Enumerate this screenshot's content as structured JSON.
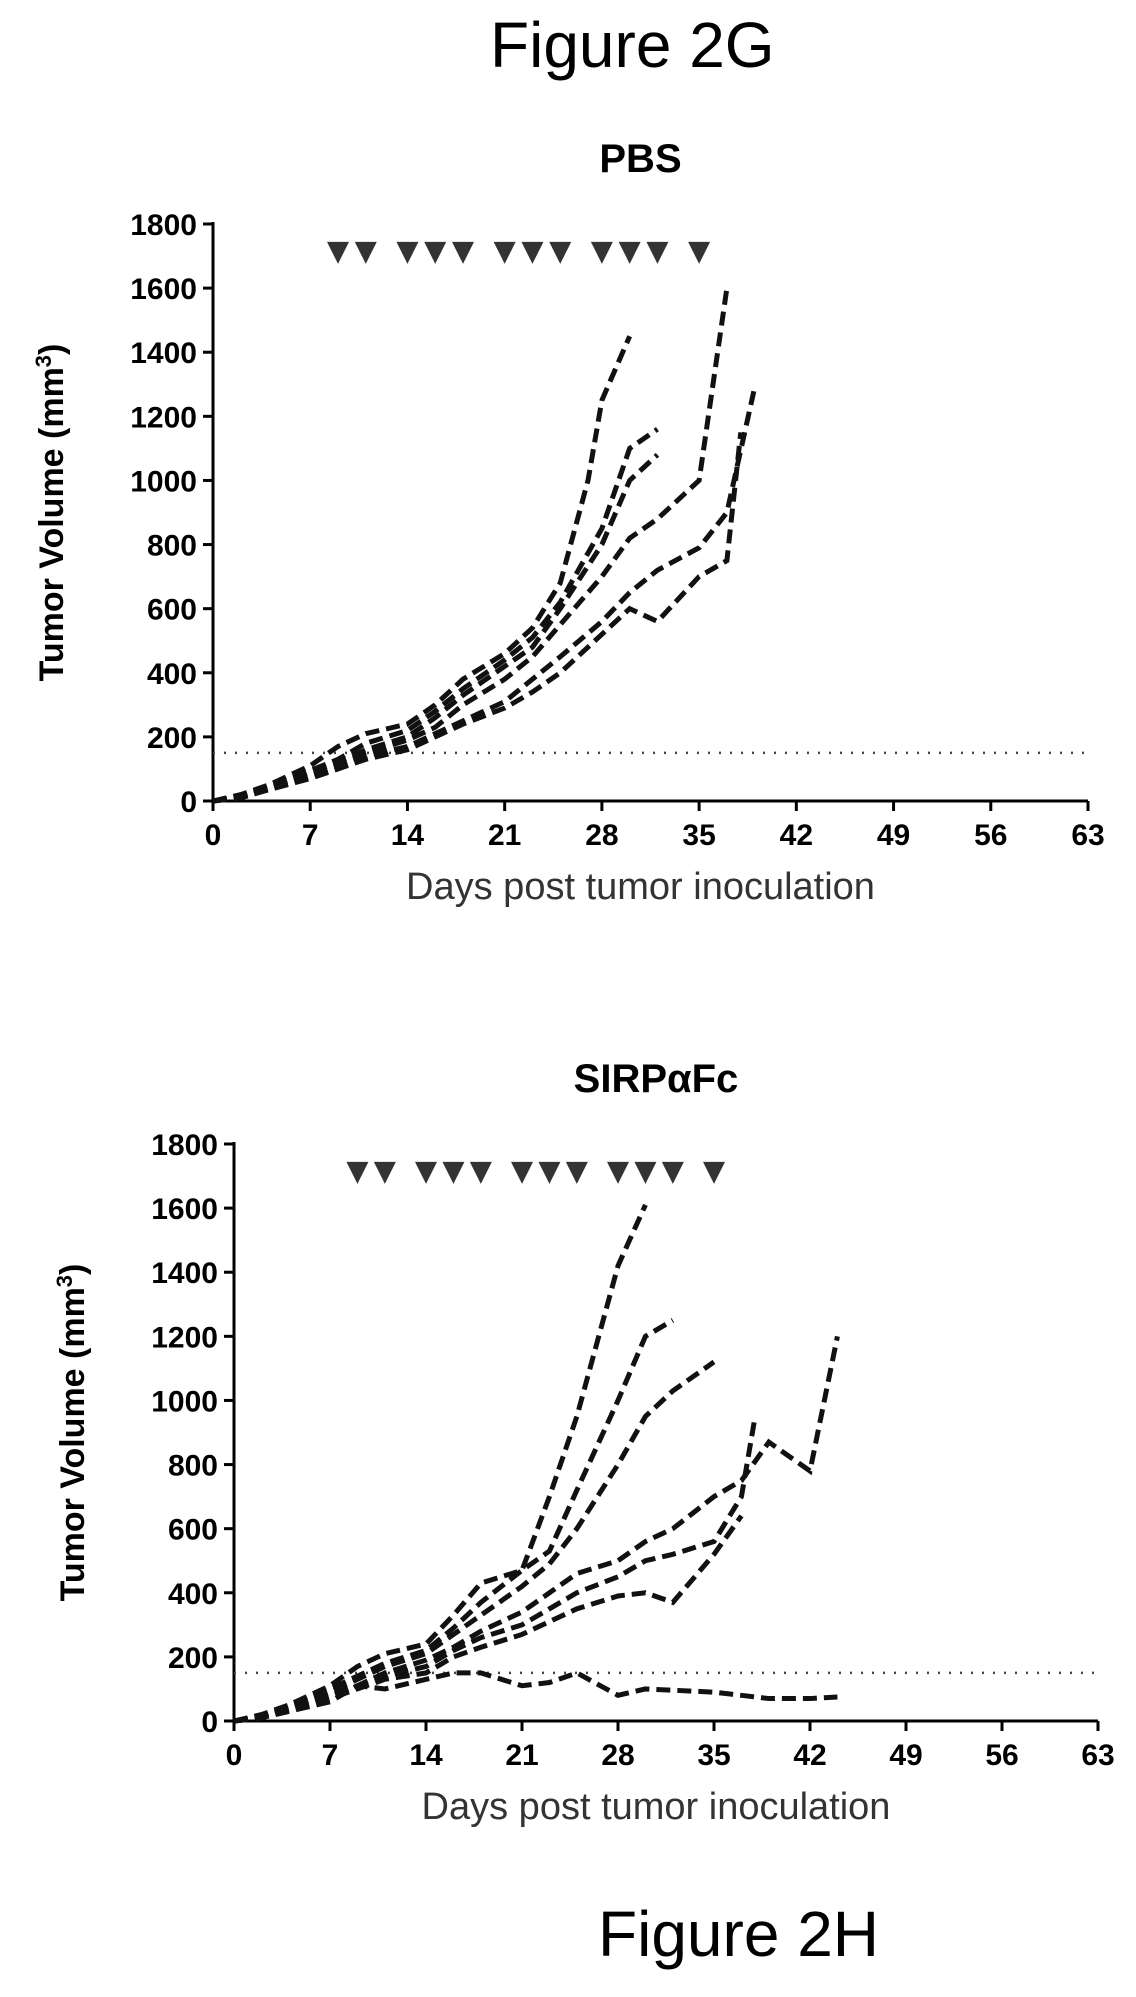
{
  "figure_labels": {
    "top": "Figure 2G",
    "bottom": "Figure 2H"
  },
  "chart_data": [
    {
      "type": "line",
      "title": "PBS",
      "xlabel": "Days post tumor inoculation",
      "ylabel": "Tumor Volume (mm",
      "ylabel_sup": "3",
      "ylabel_end": ")",
      "xlim": [
        0,
        63
      ],
      "ylim": [
        0,
        1800
      ],
      "x_ticks": [
        0,
        7,
        14,
        21,
        28,
        35,
        42,
        49,
        56,
        63
      ],
      "y_ticks": [
        0,
        200,
        400,
        600,
        800,
        1000,
        1200,
        1400,
        1600,
        1800
      ],
      "threshold": 150,
      "dosing_days": [
        9,
        11,
        14,
        16,
        18,
        21,
        23,
        25,
        28,
        30,
        32,
        35
      ],
      "dosing_level": 1710,
      "series": [
        {
          "x": [
            0,
            2,
            4,
            7,
            9,
            11,
            14,
            16,
            18,
            21,
            23,
            25,
            27,
            28,
            30
          ],
          "values": [
            0,
            20,
            50,
            110,
            170,
            210,
            240,
            300,
            380,
            460,
            540,
            680,
            1000,
            1250,
            1450
          ]
        },
        {
          "x": [
            0,
            2,
            4,
            7,
            9,
            11,
            14,
            16,
            18,
            21,
            23,
            25,
            28,
            30,
            32
          ],
          "values": [
            0,
            15,
            45,
            95,
            130,
            180,
            220,
            280,
            350,
            440,
            510,
            620,
            850,
            1100,
            1160
          ]
        },
        {
          "x": [
            0,
            2,
            4,
            7,
            9,
            11,
            14,
            16,
            18,
            21,
            23,
            25,
            28,
            30,
            32
          ],
          "values": [
            0,
            15,
            40,
            90,
            120,
            160,
            200,
            260,
            330,
            420,
            480,
            600,
            800,
            1000,
            1080
          ]
        },
        {
          "x": [
            0,
            2,
            4,
            7,
            9,
            11,
            14,
            16,
            18,
            21,
            23,
            25,
            28,
            30,
            32,
            35,
            37
          ],
          "values": [
            0,
            10,
            40,
            80,
            110,
            150,
            190,
            230,
            300,
            380,
            450,
            550,
            700,
            820,
            880,
            1000,
            1600
          ]
        },
        {
          "x": [
            0,
            2,
            4,
            7,
            9,
            11,
            14,
            16,
            18,
            21,
            23,
            25,
            28,
            30,
            32,
            35,
            37,
            39
          ],
          "values": [
            0,
            10,
            35,
            75,
            100,
            140,
            170,
            210,
            250,
            310,
            380,
            450,
            560,
            650,
            720,
            790,
            900,
            1290
          ]
        },
        {
          "x": [
            0,
            2,
            4,
            7,
            9,
            11,
            14,
            16,
            18,
            21,
            23,
            25,
            28,
            30,
            32,
            35,
            37,
            38
          ],
          "values": [
            0,
            10,
            35,
            70,
            100,
            130,
            160,
            200,
            240,
            290,
            340,
            400,
            520,
            600,
            560,
            700,
            750,
            1150
          ]
        }
      ]
    },
    {
      "type": "line",
      "title": "SIRPαFc",
      "xlabel": "Days post tumor inoculation",
      "ylabel": "Tumor Volume (mm",
      "ylabel_sup": "3",
      "ylabel_end": ")",
      "xlim": [
        0,
        63
      ],
      "ylim": [
        0,
        1800
      ],
      "x_ticks": [
        0,
        7,
        14,
        21,
        28,
        35,
        42,
        49,
        56,
        63
      ],
      "y_ticks": [
        0,
        200,
        400,
        600,
        800,
        1000,
        1200,
        1400,
        1600,
        1800
      ],
      "threshold": 150,
      "dosing_days": [
        9,
        11,
        14,
        16,
        18,
        21,
        23,
        25,
        28,
        30,
        32,
        35
      ],
      "dosing_level": 1710,
      "series": [
        {
          "x": [
            0,
            2,
            4,
            7,
            9,
            11,
            14,
            16,
            18,
            21,
            23,
            25,
            28,
            30
          ],
          "values": [
            0,
            20,
            50,
            110,
            170,
            210,
            240,
            330,
            430,
            470,
            700,
            950,
            1420,
            1610
          ]
        },
        {
          "x": [
            0,
            2,
            4,
            7,
            9,
            11,
            14,
            16,
            18,
            21,
            23,
            25,
            28,
            30,
            32
          ],
          "values": [
            0,
            15,
            45,
            100,
            140,
            180,
            220,
            290,
            370,
            470,
            530,
            720,
            1000,
            1200,
            1250
          ]
        },
        {
          "x": [
            0,
            2,
            4,
            7,
            9,
            11,
            14,
            16,
            18,
            21,
            23,
            25,
            28,
            30,
            32,
            35
          ],
          "values": [
            0,
            15,
            40,
            90,
            130,
            170,
            210,
            270,
            330,
            420,
            490,
            600,
            800,
            950,
            1030,
            1120
          ]
        },
        {
          "x": [
            0,
            2,
            4,
            7,
            9,
            11,
            14,
            16,
            18,
            21,
            23,
            25,
            28,
            30,
            32,
            35,
            37,
            39,
            42,
            44
          ],
          "values": [
            0,
            10,
            40,
            80,
            110,
            150,
            190,
            230,
            280,
            340,
            400,
            460,
            500,
            560,
            600,
            700,
            750,
            870,
            780,
            1200
          ]
        },
        {
          "x": [
            0,
            2,
            4,
            7,
            9,
            11,
            14,
            16,
            18,
            21,
            23,
            25,
            28,
            30,
            32,
            35,
            37,
            38
          ],
          "values": [
            0,
            10,
            35,
            75,
            110,
            140,
            170,
            220,
            260,
            300,
            350,
            400,
            450,
            500,
            520,
            560,
            700,
            950
          ]
        },
        {
          "x": [
            0,
            2,
            4,
            7,
            9,
            11,
            14,
            16,
            18,
            21,
            23,
            25,
            28,
            30,
            32,
            35,
            37
          ],
          "values": [
            0,
            10,
            35,
            70,
            100,
            130,
            150,
            200,
            230,
            270,
            310,
            350,
            390,
            400,
            370,
            520,
            640
          ]
        },
        {
          "x": [
            0,
            2,
            4,
            7,
            9,
            11,
            14,
            16,
            18,
            21,
            23,
            25,
            28,
            30,
            35,
            39,
            42,
            44
          ],
          "values": [
            0,
            10,
            30,
            60,
            110,
            100,
            130,
            150,
            150,
            110,
            120,
            150,
            80,
            100,
            90,
            70,
            70,
            75
          ]
        }
      ]
    }
  ]
}
